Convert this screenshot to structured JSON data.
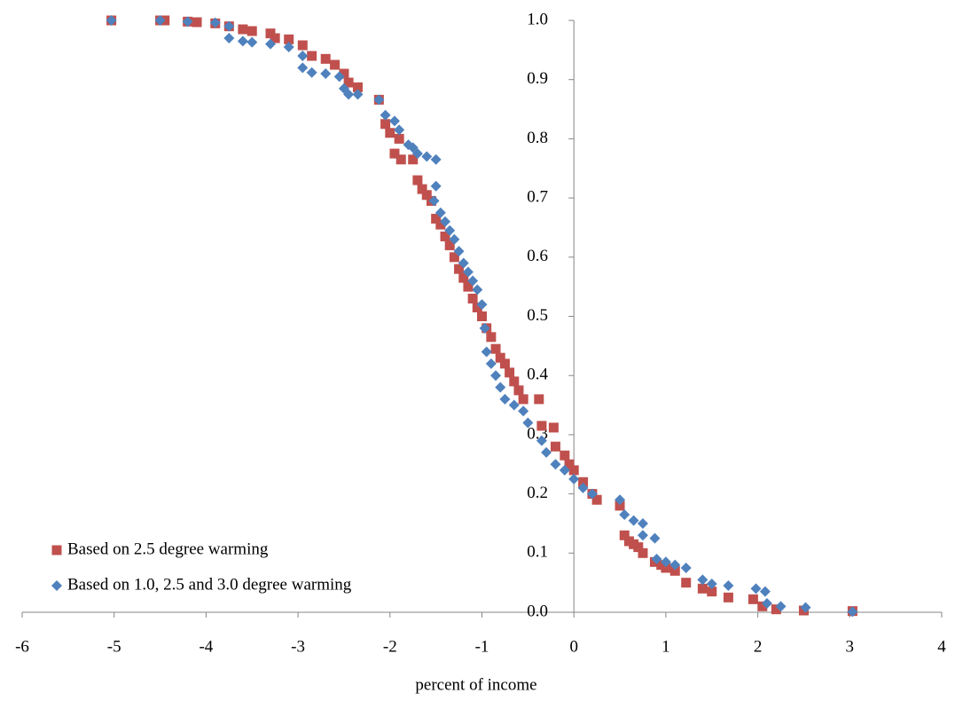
{
  "chart_data": {
    "type": "scatter",
    "xlabel": "percent of income",
    "xlim": [
      -6,
      4
    ],
    "xticks": [
      -6,
      -5,
      -4,
      -3,
      -2,
      -1,
      0,
      1,
      2,
      3,
      4
    ],
    "ylim": [
      0,
      1
    ],
    "yticks": [
      {
        "value": 0,
        "label": "0.0"
      },
      0.1,
      0.2,
      0.3,
      0.4,
      0.5,
      0.6,
      0.7,
      0.8,
      0.9,
      {
        "value": 1,
        "label": "1.0"
      }
    ],
    "grid": false,
    "legend": "lower left",
    "series": [
      {
        "name": "Based on 2.5 degree warming",
        "color": "#c0504d",
        "marker": "square",
        "x": [
          -5.03,
          -4.5,
          -4.45,
          -4.2,
          -4.1,
          -3.9,
          -3.75,
          -3.6,
          -3.5,
          -3.3,
          -3.25,
          -3.1,
          -2.95,
          -2.85,
          -2.7,
          -2.6,
          -2.5,
          -2.45,
          -2.35,
          -2.12,
          -2.05,
          -2.0,
          -1.9,
          -1.95,
          -1.88,
          -1.75,
          -1.7,
          -1.65,
          -1.6,
          -1.55,
          -1.5,
          -1.45,
          -1.4,
          -1.35,
          -1.3,
          -1.25,
          -1.2,
          -1.15,
          -1.1,
          -1.05,
          -1.0,
          -0.95,
          -0.9,
          -0.85,
          -0.8,
          -0.75,
          -0.7,
          -0.65,
          -0.6,
          -0.55,
          -0.38,
          -0.35,
          -0.22,
          -0.2,
          -0.1,
          -0.05,
          0.0,
          0.1,
          0.2,
          0.25,
          0.5,
          0.55,
          0.6,
          0.65,
          0.7,
          0.75,
          0.88,
          0.95,
          1.0,
          1.1,
          1.22,
          1.4,
          1.5,
          1.68,
          1.95,
          2.05,
          2.2,
          2.5,
          3.03
        ],
        "values": [
          1.0,
          1.0,
          1.0,
          0.998,
          0.997,
          0.995,
          0.99,
          0.985,
          0.982,
          0.978,
          0.97,
          0.968,
          0.958,
          0.94,
          0.935,
          0.925,
          0.91,
          0.895,
          0.887,
          0.866,
          0.825,
          0.81,
          0.8,
          0.775,
          0.765,
          0.765,
          0.73,
          0.715,
          0.705,
          0.695,
          0.665,
          0.655,
          0.635,
          0.62,
          0.6,
          0.58,
          0.565,
          0.55,
          0.53,
          0.515,
          0.5,
          0.48,
          0.465,
          0.445,
          0.43,
          0.42,
          0.405,
          0.39,
          0.375,
          0.36,
          0.36,
          0.315,
          0.312,
          0.28,
          0.265,
          0.25,
          0.24,
          0.22,
          0.2,
          0.19,
          0.18,
          0.13,
          0.12,
          0.115,
          0.11,
          0.1,
          0.085,
          0.08,
          0.075,
          0.07,
          0.05,
          0.04,
          0.035,
          0.025,
          0.022,
          0.01,
          0.005,
          0.003,
          0.002
        ]
      },
      {
        "name": "Based on 1.0, 2.5 and 3.0 degree warming",
        "color": "#4f81bd",
        "marker": "diamond",
        "x": [
          -5.03,
          -4.5,
          -4.2,
          -3.9,
          -3.75,
          -3.75,
          -3.6,
          -3.5,
          -3.3,
          -3.1,
          -2.95,
          -2.95,
          -2.85,
          -2.7,
          -2.55,
          -2.5,
          -2.45,
          -2.35,
          -2.12,
          -2.05,
          -1.95,
          -1.9,
          -1.8,
          -1.75,
          -1.7,
          -1.6,
          -1.5,
          -1.5,
          -1.52,
          -1.45,
          -1.4,
          -1.35,
          -1.3,
          -1.25,
          -1.2,
          -1.15,
          -1.1,
          -1.05,
          -1.0,
          -0.97,
          -0.95,
          -0.9,
          -0.85,
          -0.8,
          -0.75,
          -0.65,
          -0.55,
          -0.5,
          -0.35,
          -0.3,
          -0.2,
          -0.1,
          0.0,
          0.1,
          0.2,
          0.5,
          0.55,
          0.65,
          0.75,
          0.75,
          0.88,
          0.9,
          1.0,
          1.1,
          1.22,
          1.4,
          1.5,
          1.68,
          1.98,
          2.08,
          2.1,
          2.25,
          2.52,
          3.03
        ],
        "values": [
          1.0,
          1.0,
          0.998,
          0.996,
          0.99,
          0.97,
          0.965,
          0.963,
          0.96,
          0.955,
          0.94,
          0.92,
          0.912,
          0.91,
          0.905,
          0.885,
          0.875,
          0.875,
          0.866,
          0.84,
          0.83,
          0.815,
          0.79,
          0.785,
          0.775,
          0.77,
          0.765,
          0.72,
          0.695,
          0.675,
          0.66,
          0.645,
          0.63,
          0.61,
          0.59,
          0.575,
          0.56,
          0.545,
          0.52,
          0.48,
          0.44,
          0.42,
          0.4,
          0.38,
          0.36,
          0.35,
          0.34,
          0.32,
          0.29,
          0.27,
          0.25,
          0.24,
          0.225,
          0.21,
          0.2,
          0.19,
          0.165,
          0.155,
          0.15,
          0.13,
          0.125,
          0.09,
          0.085,
          0.08,
          0.075,
          0.055,
          0.048,
          0.045,
          0.04,
          0.035,
          0.015,
          0.01,
          0.008,
          0.001
        ]
      }
    ]
  }
}
